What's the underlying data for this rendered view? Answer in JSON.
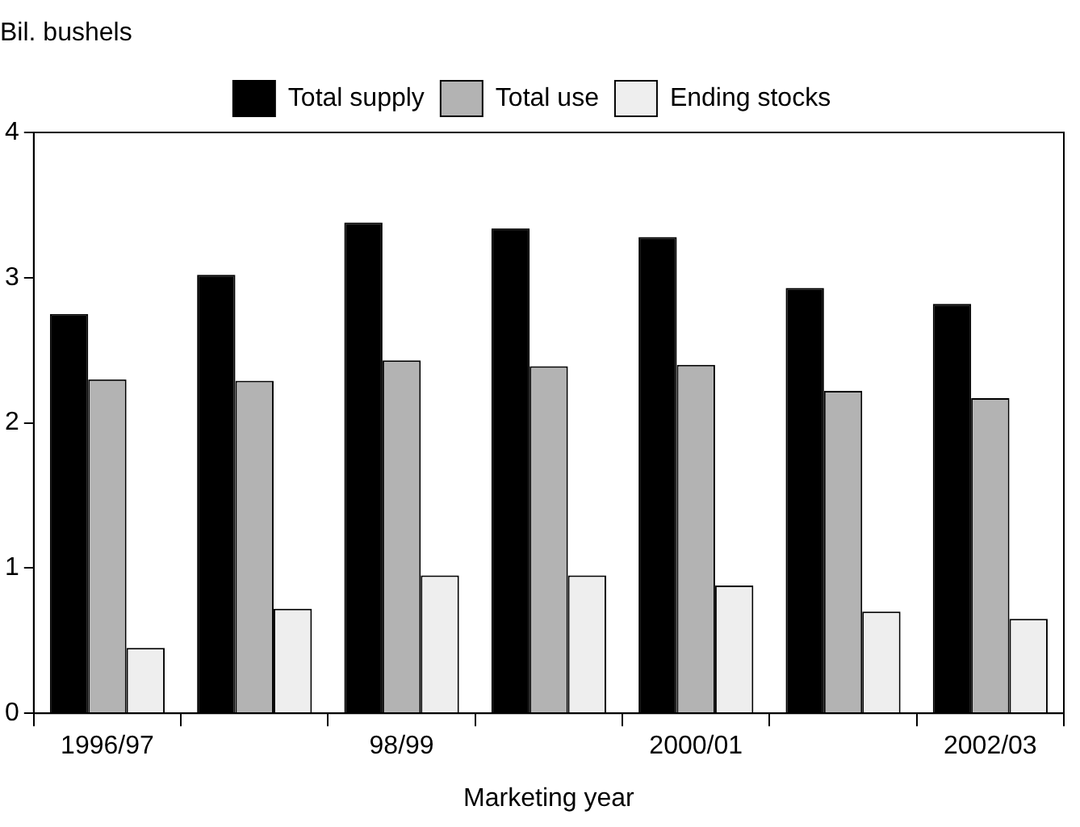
{
  "chart_data": {
    "type": "bar",
    "ylabel": "Bil. bushels",
    "xlabel": "Marketing year",
    "categories": [
      "1996/97",
      null,
      "98/99",
      null,
      "2000/01",
      null,
      "2002/03"
    ],
    "series": [
      {
        "name": "Total supply",
        "color": "#000000",
        "values": [
          2.75,
          3.02,
          3.38,
          3.34,
          3.28,
          2.93,
          2.82
        ]
      },
      {
        "name": "Total use",
        "color": "#b3b3b3",
        "values": [
          2.3,
          2.29,
          2.43,
          2.39,
          2.4,
          2.22,
          2.17
        ]
      },
      {
        "name": "Ending stocks",
        "color": "#eeeeee",
        "values": [
          0.45,
          0.72,
          0.95,
          0.95,
          0.88,
          0.7,
          0.65
        ]
      }
    ],
    "ylim": [
      0,
      4
    ],
    "yticks": [
      0,
      1,
      2,
      3,
      4
    ],
    "grid": false,
    "legend": "top"
  }
}
